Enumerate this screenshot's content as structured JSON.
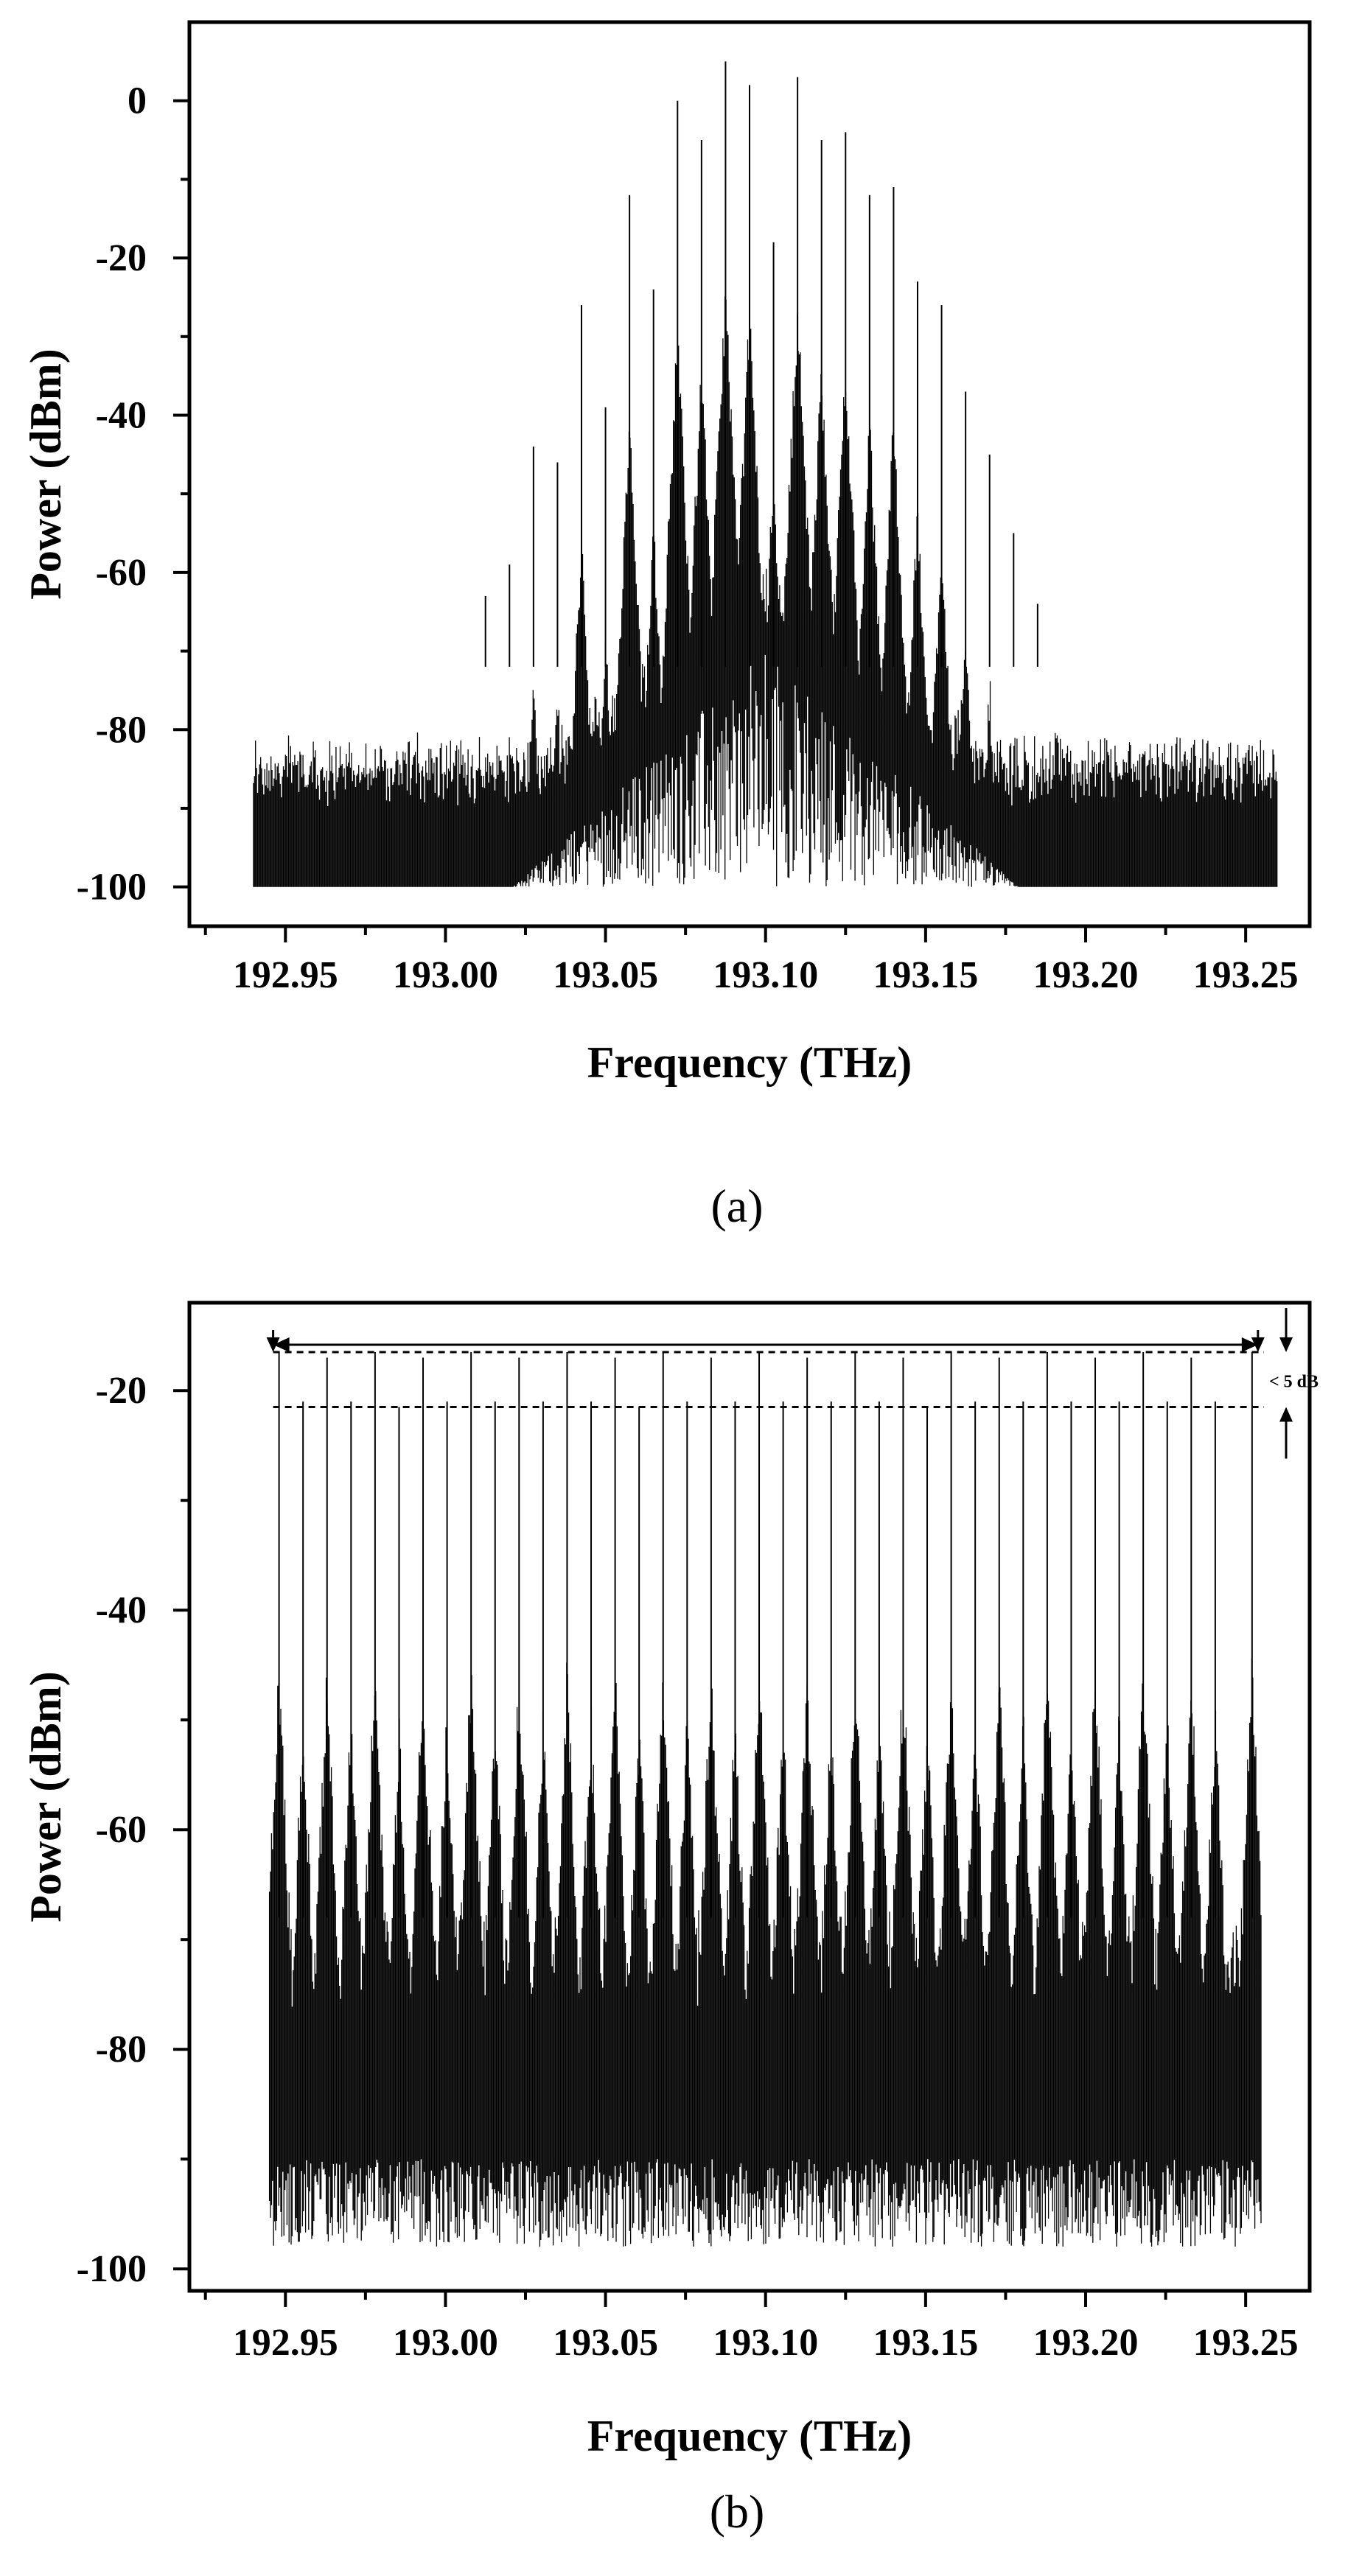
{
  "chart_data": [
    {
      "type": "line",
      "panel_label": "(a)",
      "xlabel": "Frequency (THz)",
      "ylabel": "Power (dBm)",
      "xlim": [
        192.92,
        193.27
      ],
      "ylim": [
        -105,
        10
      ],
      "x_ticks": [
        "192.95",
        "193.00",
        "193.05",
        "193.10",
        "193.15",
        "193.20",
        "193.25"
      ],
      "y_ticks": [
        "0",
        "-20",
        "-40",
        "-60",
        "-80",
        "-100"
      ],
      "grid": false,
      "noise_floor_dbm": [
        -100,
        -83
      ],
      "spectral_range_thz": [
        192.94,
        193.26
      ],
      "series": [
        {
          "values": [
            [
              193.0125,
              -63
            ],
            [
              193.02,
              -59
            ],
            [
              193.0275,
              -44
            ],
            [
              193.035,
              -46
            ],
            [
              193.0425,
              -26
            ],
            [
              193.05,
              -39
            ],
            [
              193.0575,
              -12
            ],
            [
              193.065,
              -24
            ],
            [
              193.0725,
              0
            ],
            [
              193.08,
              -5
            ],
            [
              193.0875,
              5
            ],
            [
              193.095,
              2
            ],
            [
              193.1025,
              -18
            ],
            [
              193.11,
              3
            ],
            [
              193.1175,
              -5
            ],
            [
              193.125,
              -4
            ],
            [
              193.1325,
              -12
            ],
            [
              193.14,
              -11
            ],
            [
              193.1475,
              -23
            ],
            [
              193.155,
              -26
            ],
            [
              193.1625,
              -37
            ],
            [
              193.17,
              -45
            ],
            [
              193.1775,
              -55
            ],
            [
              193.185,
              -64
            ]
          ]
        }
      ]
    },
    {
      "type": "line",
      "panel_label": "(b)",
      "xlabel": "Frequency (THz)",
      "ylabel": "Power (dBm)",
      "xlim": [
        192.92,
        193.27
      ],
      "ylim": [
        -102,
        -12
      ],
      "x_ticks": [
        "192.95",
        "193.00",
        "193.05",
        "193.10",
        "193.15",
        "193.20",
        "193.25"
      ],
      "y_ticks": [
        "-20",
        "-40",
        "-60",
        "-80",
        "-100"
      ],
      "grid": false,
      "noise_floor_dbm": [
        -98,
        -70
      ],
      "spectral_range_thz": [
        192.945,
        193.255
      ],
      "flatness_annotation": "< 5 dB",
      "flatness_levels_dbm": [
        -16.5,
        -21.5
      ],
      "comb_span_thz": [
        192.948,
        193.252
      ],
      "series": [
        {
          "values": [
            [
              192.948,
              -16.5
            ],
            [
              192.9555,
              -21
            ],
            [
              192.963,
              -17
            ],
            [
              192.9705,
              -21
            ],
            [
              192.978,
              -16.5
            ],
            [
              192.9855,
              -21.5
            ],
            [
              192.993,
              -17
            ],
            [
              193.0005,
              -21
            ],
            [
              193.008,
              -16.5
            ],
            [
              193.0155,
              -21
            ],
            [
              193.023,
              -17
            ],
            [
              193.0305,
              -21
            ],
            [
              193.038,
              -16.5
            ],
            [
              193.0455,
              -21
            ],
            [
              193.053,
              -17
            ],
            [
              193.0605,
              -21.5
            ],
            [
              193.068,
              -16.5
            ],
            [
              193.0755,
              -21
            ],
            [
              193.083,
              -17
            ],
            [
              193.0905,
              -21
            ],
            [
              193.098,
              -16.5
            ],
            [
              193.1055,
              -21
            ],
            [
              193.113,
              -17
            ],
            [
              193.1205,
              -21
            ],
            [
              193.128,
              -16.5
            ],
            [
              193.1355,
              -21
            ],
            [
              193.143,
              -17
            ],
            [
              193.1505,
              -21.5
            ],
            [
              193.158,
              -16.5
            ],
            [
              193.1655,
              -21
            ],
            [
              193.173,
              -17
            ],
            [
              193.1805,
              -21
            ],
            [
              193.188,
              -16.5
            ],
            [
              193.1955,
              -21
            ],
            [
              193.203,
              -17
            ],
            [
              193.2105,
              -21
            ],
            [
              193.218,
              -16.5
            ],
            [
              193.2255,
              -21
            ],
            [
              193.233,
              -17
            ],
            [
              193.2405,
              -21
            ],
            [
              193.252,
              -16.5
            ]
          ]
        }
      ]
    }
  ]
}
